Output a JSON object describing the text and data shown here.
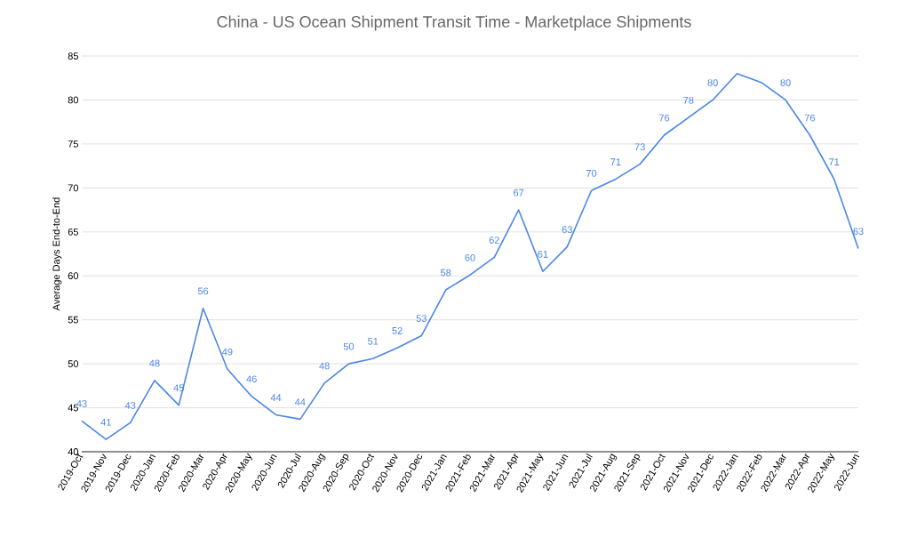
{
  "chart_data": {
    "type": "line",
    "title": "China - US Ocean Shipment Transit Time - Marketplace Shipments",
    "ylabel": "Average Days End-to-End",
    "categories": [
      "2019-Oct",
      "2019-Nov",
      "2019-Dec",
      "2020-Jan",
      "2020-Feb",
      "2020-Mar",
      "2020-Apr",
      "2020-May",
      "2020-Jun",
      "2020-Jul",
      "2020-Aug",
      "2020-Sep",
      "2020-Oct",
      "2020-Nov",
      "2020-Dec",
      "2021-Jan",
      "2021-Feb",
      "2021-Mar",
      "2021-Apr",
      "2021-May",
      "2021-Jun",
      "2021-Jul",
      "2021-Aug",
      "2021-Sep",
      "2021-Oct",
      "2021-Nov",
      "2021-Dec",
      "2022-Jan",
      "2022-Feb",
      "2022-Mar",
      "2022-Apr",
      "2022-May",
      "2022-Jun"
    ],
    "values": [
      43.5,
      41.4,
      43.3,
      48.1,
      45.3,
      56.3,
      49.4,
      46.3,
      44.2,
      43.7,
      47.8,
      50.0,
      50.6,
      51.8,
      53.2,
      58.4,
      60.1,
      62.1,
      67.5,
      60.5,
      63.3,
      69.7,
      71.0,
      72.7,
      76.0,
      78.0,
      80.0,
      83.0,
      82.0,
      80.0,
      76.0,
      71.0,
      63.1
    ],
    "value_labels": [
      "43",
      "41",
      "43",
      "48",
      "45",
      "56",
      "49",
      "46",
      "44",
      "44",
      "48",
      "50",
      "51",
      "52",
      "53",
      "58",
      "60",
      "62",
      "67",
      "61",
      "63",
      "70",
      "71",
      "73",
      "76",
      "78",
      "80",
      null,
      null,
      "80",
      "76",
      "71",
      "63"
    ],
    "color": "#4a86e8",
    "ylim": [
      40,
      85
    ],
    "yticks": [
      40,
      45,
      50,
      55,
      60,
      65,
      70,
      75,
      80,
      85
    ],
    "grid": "y",
    "marker": "none",
    "line_style": "solid"
  }
}
